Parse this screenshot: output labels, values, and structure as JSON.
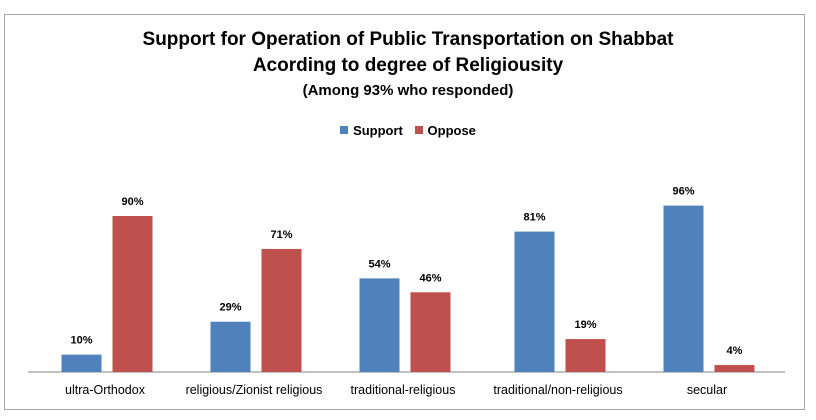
{
  "chart_data": {
    "type": "bar",
    "title": "Support for Operation of Public Transportation on Shabbat",
    "subtitle": "Acording to degree of Religiousity",
    "note": "(Among 93% who responded)",
    "categories": [
      "ultra-Orthodox",
      "religious/Zionist religious",
      "traditional-religious",
      "traditional/non-religious",
      "secular"
    ],
    "series": [
      {
        "name": "Support",
        "color": "#4f81bd",
        "values": [
          10,
          29,
          54,
          81,
          96
        ],
        "labels": [
          "10%",
          "29%",
          "54%",
          "81%",
          "96%"
        ]
      },
      {
        "name": "Oppose",
        "color": "#c0504d",
        "values": [
          90,
          71,
          46,
          19,
          4
        ],
        "labels": [
          "90%",
          "71%",
          "46%",
          "19%",
          "4%"
        ]
      }
    ],
    "ylim": [
      0,
      100
    ],
    "grid": false,
    "legend": "top-center"
  }
}
